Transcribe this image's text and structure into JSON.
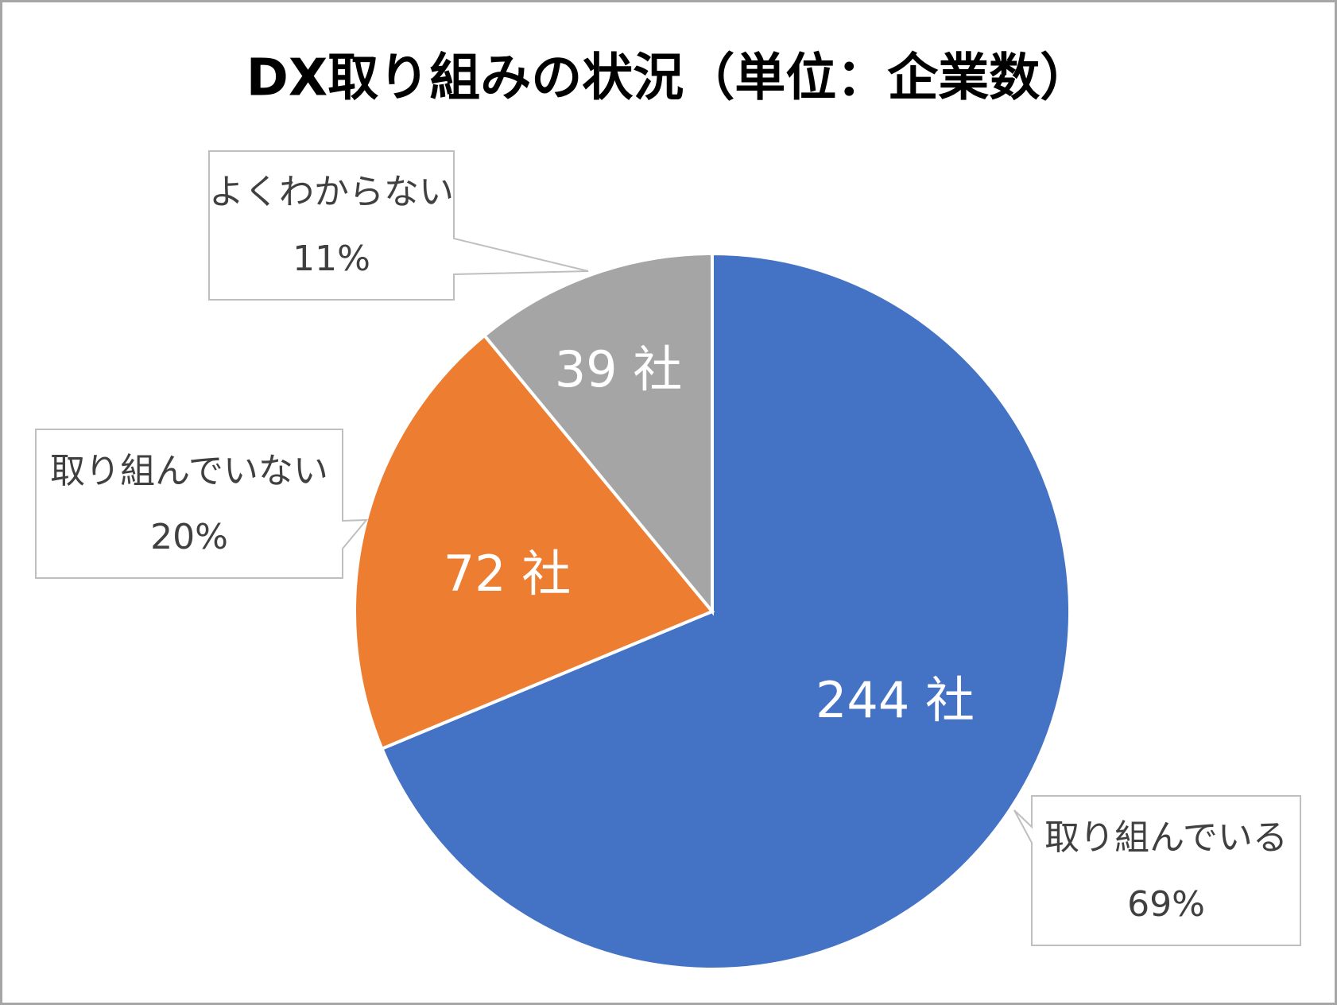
{
  "chart_data": {
    "type": "pie",
    "title": "DX取り組みの状況（単位：企業数）",
    "categories": [
      "取り組んでいる",
      "取り組んでいない",
      "よくわからない"
    ],
    "values": [
      244,
      72,
      39
    ],
    "value_labels": [
      "244 社",
      "72 社",
      "39 社"
    ],
    "percents": [
      69,
      20,
      11
    ],
    "percent_labels": [
      "69%",
      "20%",
      "11%"
    ],
    "colors": [
      "#4472c4",
      "#ed7d31",
      "#a5a5a5"
    ]
  }
}
